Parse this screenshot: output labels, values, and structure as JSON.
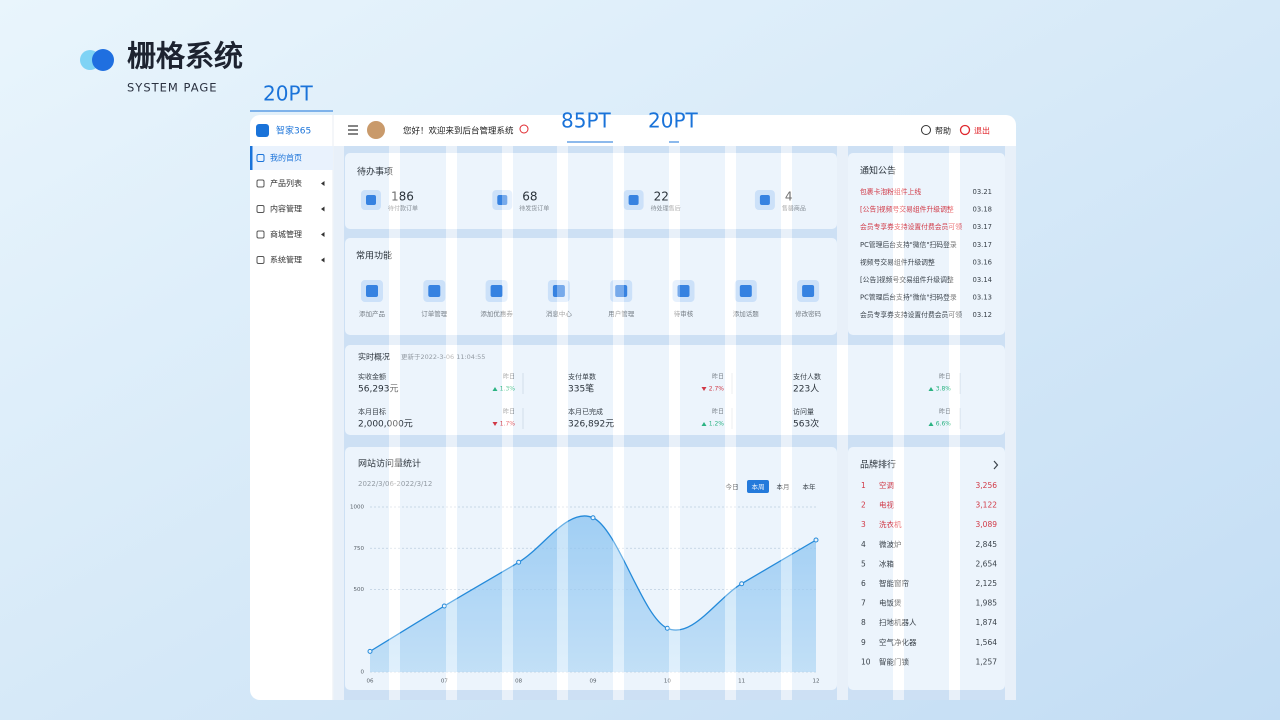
{
  "header": {
    "title": "栅格系统",
    "subtitle": "SYSTEM PAGE"
  },
  "annotations": [
    "20PT",
    "85PT",
    "20PT"
  ],
  "app": {
    "logo": "智家365",
    "greeting": "您好！欢迎来到后台管理系统",
    "help": "帮助",
    "logout": "退出",
    "menu": [
      "我的首页",
      "产品列表",
      "内容管理",
      "商城管理",
      "系统管理"
    ],
    "todo": {
      "title": "待办事项",
      "items": [
        {
          "value": 186,
          "label": "待付款订单"
        },
        {
          "value": 68,
          "label": "待发货订单"
        },
        {
          "value": 22,
          "label": "待处理售后"
        },
        {
          "value": 4,
          "label": "售罄商品"
        }
      ]
    },
    "functions": {
      "title": "常用功能",
      "items": [
        "添加产品",
        "订单管理",
        "添加优惠券",
        "消息中心",
        "用户管理",
        "待审核",
        "添加话题",
        "修改密码"
      ]
    },
    "realtime": {
      "title": "实时概况",
      "updated": "更新于2022-3-06 11:04:55",
      "metrics": [
        {
          "label": "实收金额",
          "value": "56,293元",
          "compare": "昨日",
          "change": "1.3%",
          "direction": "up"
        },
        {
          "label": "支付单数",
          "value": "335笔",
          "compare": "昨日",
          "change": "2.7%",
          "direction": "down"
        },
        {
          "label": "支付人数",
          "value": "223人",
          "compare": "昨日",
          "change": "3.8%",
          "direction": "up"
        },
        {
          "label": "本月目标",
          "value": "2,000,000元",
          "compare": "昨日",
          "change": "1.7%",
          "direction": "down"
        },
        {
          "label": "本月已完成",
          "value": "326,892元",
          "compare": "昨日",
          "change": "1.2%",
          "direction": "up"
        },
        {
          "label": "访问量",
          "value": "563次",
          "compare": "昨日",
          "change": "6.6%",
          "direction": "up"
        }
      ]
    },
    "notices": {
      "title": "通知公告",
      "items": [
        {
          "text": "包裹卡泡粉组件上线",
          "date": "03.21",
          "color": "#e0282e"
        },
        {
          "text": "[公告]视频号交易组件升级调整",
          "date": "03.18",
          "color": "#e0282e"
        },
        {
          "text": "会员专享券支持设置付费会员可领",
          "date": "03.17",
          "color": "#e0282e"
        },
        {
          "text": "PC管理后台支持\"微信\"扫码登录",
          "date": "03.17",
          "color": "#333333"
        },
        {
          "text": "视频号交易组件升级调整",
          "date": "03.16",
          "color": "#333333"
        },
        {
          "text": "[公告]视频号交易组件升级调整",
          "date": "03.14",
          "color": "#333333"
        },
        {
          "text": "PC管理后台支持\"微信\"扫码登录",
          "date": "03.13",
          "color": "#333333"
        },
        {
          "text": "会员专享券支持设置付费会员可领",
          "date": "03.12",
          "color": "#333333"
        }
      ]
    },
    "ranking": {
      "title": "品牌排行",
      "items": [
        {
          "rank": 1,
          "name": "空调",
          "value": "3,256",
          "color": "#e0282e"
        },
        {
          "rank": 2,
          "name": "电视",
          "value": "3,122",
          "color": "#e0282e"
        },
        {
          "rank": 3,
          "name": "洗衣机",
          "value": "3,089",
          "color": "#e0282e"
        },
        {
          "rank": 4,
          "name": "微波炉",
          "value": "2,845",
          "color": "#333333"
        },
        {
          "rank": 5,
          "name": "冰箱",
          "value": "2,654",
          "color": "#333333"
        },
        {
          "rank": 6,
          "name": "智能窗帘",
          "value": "2,125",
          "color": "#333333"
        },
        {
          "rank": 7,
          "name": "电饭煲",
          "value": "1,985",
          "color": "#333333"
        },
        {
          "rank": 8,
          "name": "扫地机器人",
          "value": "1,874",
          "color": "#333333"
        },
        {
          "rank": 9,
          "name": "空气净化器",
          "value": "1,564",
          "color": "#333333"
        },
        {
          "rank": 10,
          "name": "智能门锁",
          "value": "1,257",
          "color": "#333333"
        }
      ]
    }
  },
  "chart_data": {
    "type": "area",
    "title": "网站访问量统计",
    "subtitle": "2022/3/06-2022/3/12",
    "tabs": [
      "今日",
      "本周",
      "本月",
      "本年"
    ],
    "active_tab": 1,
    "categories": [
      "06",
      "07",
      "08",
      "09",
      "10",
      "11",
      "12"
    ],
    "values": [
      125,
      400,
      665,
      935,
      265,
      535,
      800
    ],
    "color": "#1a86d8",
    "ylim": [
      0,
      1000
    ],
    "yticks": [
      0,
      500,
      750,
      1000
    ],
    "grid": true
  }
}
